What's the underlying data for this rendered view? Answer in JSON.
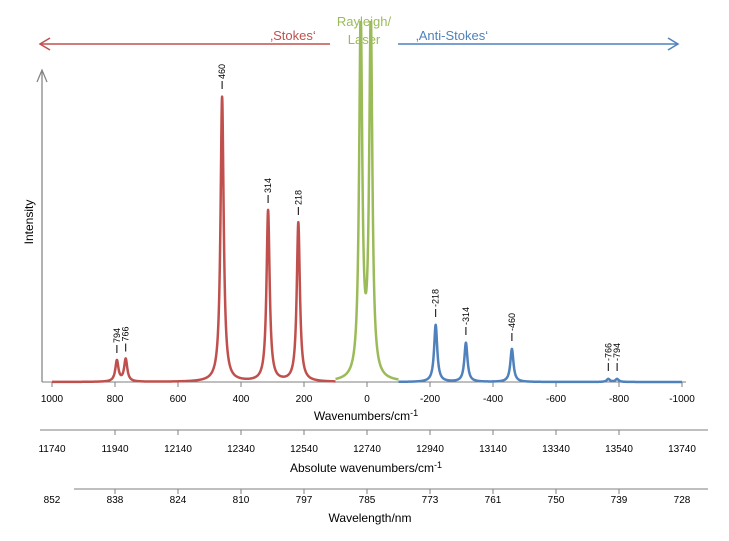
{
  "chart_data": {
    "type": "line",
    "ylabel": "Intensity",
    "xlabel": "Wavenumbers/cm-1",
    "xlim": [
      1000,
      -1000
    ],
    "x_ticks": [
      1000,
      800,
      600,
      400,
      200,
      0,
      -200,
      -400,
      -600,
      -800,
      -1000
    ],
    "header_labels": {
      "stokes": "‚Stokes‘",
      "rayleigh_line1": "Rayleigh/",
      "rayleigh_line2": "Laser",
      "antistokes": "‚Anti-Stokes‘"
    },
    "colors": {
      "stokes": "#c0504d",
      "rayleigh": "#9bbb59",
      "antistokes": "#4f81bd",
      "axis": "#7f7f7f"
    },
    "series": [
      {
        "key": "stokes",
        "baseline_range": [
          1000,
          100
        ],
        "peaks": [
          {
            "x": 794,
            "height": 0.07,
            "label": "794"
          },
          {
            "x": 766,
            "height": 0.075,
            "label": "766"
          },
          {
            "x": 460,
            "height": 0.95,
            "label": "460"
          },
          {
            "x": 314,
            "height": 0.57,
            "label": "314"
          },
          {
            "x": 218,
            "height": 0.53,
            "label": "218"
          }
        ]
      },
      {
        "key": "rayleigh",
        "baseline_range": [
          100,
          -100
        ],
        "peaks": [
          {
            "x": 20,
            "height": 1.2,
            "label": ""
          },
          {
            "x": -12,
            "height": 1.2,
            "label": ""
          }
        ]
      },
      {
        "key": "antistokes",
        "baseline_range": [
          -100,
          -1000
        ],
        "peaks": [
          {
            "x": -218,
            "height": 0.19,
            "label": "-218"
          },
          {
            "x": -314,
            "height": 0.13,
            "label": "-314"
          },
          {
            "x": -460,
            "height": 0.11,
            "label": "-460"
          },
          {
            "x": -766,
            "height": 0.01,
            "label": "-766"
          },
          {
            "x": -794,
            "height": 0.01,
            "label": "-794"
          }
        ]
      }
    ],
    "secondary_axes": [
      {
        "label": "Absolute wavenumbers/cm-1",
        "ticks": [
          "11740",
          "11940",
          "12140",
          "12340",
          "12540",
          "12740",
          "12940",
          "13140",
          "13340",
          "13540",
          "13740"
        ]
      },
      {
        "label": "Wavelength/nm",
        "ticks": [
          "852",
          "838",
          "824",
          "810",
          "797",
          "785",
          "773",
          "761",
          "750",
          "739",
          "728"
        ]
      }
    ]
  }
}
